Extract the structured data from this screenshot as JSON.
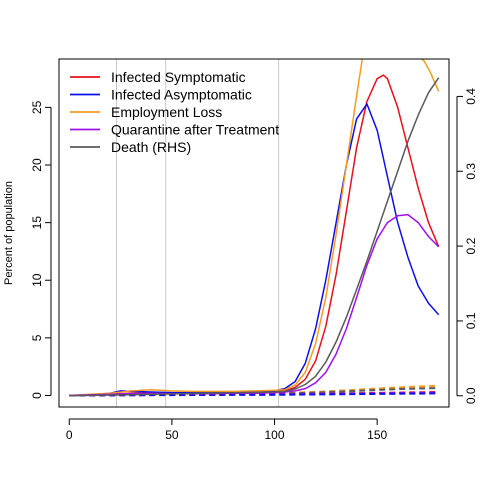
{
  "chart_data": {
    "type": "line",
    "title": "",
    "xlabel": "",
    "ylabel": "Percent of population",
    "ylabel_right": "",
    "xlim": [
      -5,
      185
    ],
    "ylim": [
      -1.0,
      29.2
    ],
    "ylim_right": [
      -0.015,
      0.45
    ],
    "x_ticks": [
      0,
      50,
      100,
      150
    ],
    "y_ticks": [
      0,
      5,
      10,
      15,
      20,
      25
    ],
    "y_ticks_right": [
      0.0,
      0.1,
      0.2,
      0.3,
      0.4
    ],
    "x_tick_labels": [
      "0",
      "50",
      "100",
      "150"
    ],
    "y_tick_labels": [
      "0",
      "5",
      "10",
      "15",
      "20",
      "25"
    ],
    "y_tick_labels_right": [
      "0.0",
      "0.1",
      "0.2",
      "0.3",
      "0.4"
    ],
    "vertical_lines": [
      23,
      47,
      102
    ],
    "legend_position": "top-left",
    "series": [
      {
        "name": "Infected Symptomatic",
        "color": "#e8101c",
        "axis": "left",
        "x": [
          0,
          10,
          20,
          30,
          40,
          50,
          60,
          70,
          80,
          90,
          100,
          105,
          110,
          115,
          120,
          125,
          130,
          135,
          140,
          145,
          150,
          153,
          155,
          160,
          165,
          170,
          175,
          180
        ],
        "y": [
          0,
          0.05,
          0.1,
          0.2,
          0.25,
          0.2,
          0.2,
          0.2,
          0.25,
          0.3,
          0.35,
          0.4,
          0.7,
          1.4,
          3.0,
          6.0,
          10.5,
          16.0,
          21.5,
          25.5,
          27.5,
          27.8,
          27.5,
          25.0,
          21.5,
          18.0,
          15.0,
          12.9
        ]
      },
      {
        "name": "Infected Asymptomatic",
        "color": "#0b10e8",
        "axis": "left",
        "x": [
          0,
          10,
          20,
          25,
          30,
          40,
          50,
          60,
          70,
          80,
          90,
          100,
          105,
          110,
          115,
          120,
          125,
          130,
          135,
          140,
          145,
          150,
          155,
          160,
          165,
          170,
          175,
          180
        ],
        "y": [
          0,
          0.05,
          0.2,
          0.4,
          0.35,
          0.3,
          0.25,
          0.25,
          0.3,
          0.3,
          0.35,
          0.4,
          0.6,
          1.2,
          2.8,
          5.8,
          10.0,
          15.0,
          20.0,
          24.0,
          25.3,
          23.0,
          19.0,
          15.0,
          12.0,
          9.5,
          8.0,
          7.0
        ]
      },
      {
        "name": "Employment Loss",
        "color": "#f79b1f",
        "axis": "left",
        "x": [
          0,
          10,
          20,
          30,
          40,
          50,
          60,
          70,
          80,
          90,
          100,
          105,
          110,
          115,
          120,
          125,
          130,
          135,
          140,
          143,
          170,
          173,
          176,
          180
        ],
        "y": [
          0,
          0.1,
          0.2,
          0.4,
          0.5,
          0.4,
          0.35,
          0.35,
          0.35,
          0.4,
          0.45,
          0.5,
          0.9,
          2.0,
          4.5,
          8.5,
          14.0,
          20.0,
          26.0,
          29.5,
          29.5,
          29.0,
          28.0,
          26.4
        ]
      },
      {
        "name": "Quarantine after Treatment",
        "color": "#a010e8",
        "axis": "left",
        "x": [
          0,
          10,
          20,
          30,
          40,
          50,
          60,
          70,
          80,
          90,
          100,
          105,
          110,
          115,
          120,
          125,
          130,
          135,
          140,
          145,
          150,
          155,
          160,
          165,
          170,
          175,
          180
        ],
        "y": [
          0,
          0.05,
          0.1,
          0.15,
          0.2,
          0.15,
          0.15,
          0.15,
          0.2,
          0.2,
          0.25,
          0.3,
          0.4,
          0.6,
          1.1,
          2.0,
          3.6,
          5.8,
          8.5,
          11.3,
          13.6,
          15.0,
          15.6,
          15.7,
          15.0,
          13.8,
          12.9
        ]
      },
      {
        "name": "Death (RHS)",
        "color": "#595959",
        "axis": "right",
        "x": [
          0,
          20,
          40,
          60,
          80,
          100,
          105,
          110,
          115,
          120,
          125,
          130,
          135,
          140,
          145,
          150,
          155,
          160,
          165,
          170,
          175,
          180
        ],
        "y": [
          0,
          0.001,
          0.002,
          0.003,
          0.004,
          0.005,
          0.006,
          0.009,
          0.015,
          0.026,
          0.045,
          0.072,
          0.105,
          0.142,
          0.18,
          0.22,
          0.26,
          0.3,
          0.34,
          0.375,
          0.405,
          0.425
        ]
      }
    ],
    "dashed_series": [
      {
        "color": "#f79b1f",
        "x": [
          0,
          50,
          100,
          120,
          140,
          160,
          180
        ],
        "y": [
          0,
          0.1,
          0.2,
          0.3,
          0.5,
          0.7,
          0.85
        ]
      },
      {
        "color": "#595959",
        "x": [
          0,
          50,
          100,
          120,
          140,
          160,
          180
        ],
        "y": [
          0,
          0.08,
          0.15,
          0.25,
          0.4,
          0.55,
          0.65
        ]
      },
      {
        "color": "#e8101c",
        "x": [
          0,
          50,
          100,
          140,
          180
        ],
        "y": [
          0,
          0.05,
          0.1,
          0.2,
          0.3
        ]
      },
      {
        "color": "#a010e8",
        "x": [
          0,
          50,
          100,
          140,
          180
        ],
        "y": [
          0,
          0.05,
          0.1,
          0.18,
          0.25
        ]
      },
      {
        "color": "#0b10e8",
        "x": [
          0,
          50,
          100,
          140,
          180
        ],
        "y": [
          0,
          0.03,
          0.06,
          0.12,
          0.18
        ]
      }
    ]
  }
}
